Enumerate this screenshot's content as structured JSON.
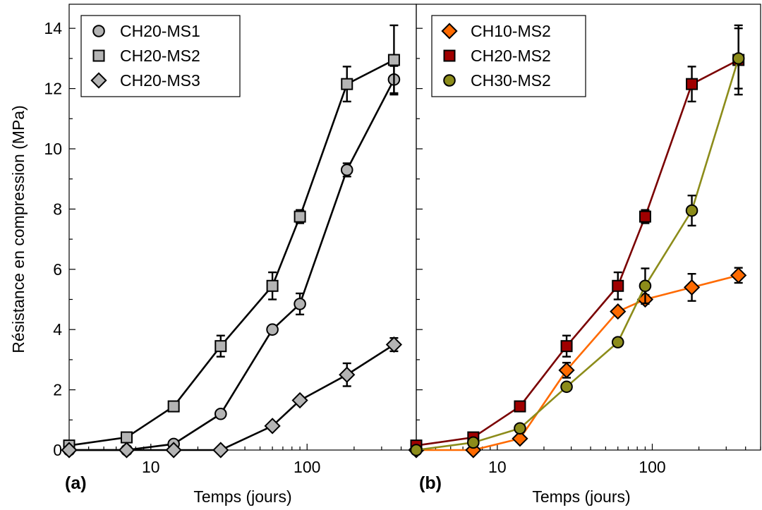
{
  "ylabel": "Résistance en compression (MPa)",
  "chart_data": [
    {
      "type": "line",
      "panel_label": "(a)",
      "xlabel": "Temps (jours)",
      "x_scale": "log",
      "xlim": [
        3,
        500
      ],
      "ylim": [
        0,
        14.8
      ],
      "x_tick_labels": [
        "10",
        "100"
      ],
      "y_tick_labels": [
        "0",
        "2",
        "4",
        "6",
        "8",
        "10",
        "12",
        "14"
      ],
      "legend_position": "top-left",
      "series": [
        {
          "name": "CH20-MS1",
          "marker": "circle",
          "color": "#000000",
          "fill": "#b4b4b4",
          "points": [
            {
              "x": 3,
              "y": 0.0,
              "err": 0.05
            },
            {
              "x": 7,
              "y": 0.0,
              "err": 0.05
            },
            {
              "x": 14,
              "y": 0.2,
              "err": 0.08
            },
            {
              "x": 28,
              "y": 1.2,
              "err": 0.08
            },
            {
              "x": 60,
              "y": 4.0,
              "err": 0.1
            },
            {
              "x": 90,
              "y": 4.85,
              "err": 0.35
            },
            {
              "x": 180,
              "y": 9.3,
              "err": 0.22
            },
            {
              "x": 360,
              "y": 12.3,
              "err": 0.45
            }
          ]
        },
        {
          "name": "CH20-MS2",
          "marker": "square",
          "color": "#000000",
          "fill": "#b4b4b4",
          "points": [
            {
              "x": 3,
              "y": 0.15,
              "err": 0.05
            },
            {
              "x": 7,
              "y": 0.42,
              "err": 0.05
            },
            {
              "x": 14,
              "y": 1.45,
              "err": 0.08
            },
            {
              "x": 28,
              "y": 3.45,
              "err": 0.35
            },
            {
              "x": 60,
              "y": 5.45,
              "err": 0.45
            },
            {
              "x": 90,
              "y": 7.75,
              "err": 0.22
            },
            {
              "x": 180,
              "y": 12.15,
              "err": 0.58
            },
            {
              "x": 360,
              "y": 12.95,
              "err": 1.15
            }
          ]
        },
        {
          "name": "CH20-MS3",
          "marker": "diamond",
          "color": "#000000",
          "fill": "#b4b4b4",
          "points": [
            {
              "x": 3,
              "y": 0.0,
              "err": 0.05
            },
            {
              "x": 7,
              "y": 0.0,
              "err": 0.05
            },
            {
              "x": 14,
              "y": 0.0,
              "err": 0.05
            },
            {
              "x": 28,
              "y": 0.0,
              "err": 0.05
            },
            {
              "x": 60,
              "y": 0.8,
              "err": 0.08
            },
            {
              "x": 90,
              "y": 1.65,
              "err": 0.1
            },
            {
              "x": 180,
              "y": 2.5,
              "err": 0.38
            },
            {
              "x": 360,
              "y": 3.5,
              "err": 0.22
            }
          ]
        }
      ]
    },
    {
      "type": "line",
      "panel_label": "(b)",
      "xlabel": "Temps (jours)",
      "x_scale": "log",
      "xlim": [
        3,
        500
      ],
      "ylim": [
        0,
        14.8
      ],
      "x_tick_labels": [
        "10",
        "100"
      ],
      "legend_position": "top-left",
      "series": [
        {
          "name": "CH10-MS2",
          "marker": "diamond",
          "color": "#ff6a00",
          "fill": "#ff6a00",
          "points": [
            {
              "x": 3,
              "y": 0.0,
              "err": 0.05
            },
            {
              "x": 7,
              "y": 0.0,
              "err": 0.05
            },
            {
              "x": 14,
              "y": 0.38,
              "err": 0.08
            },
            {
              "x": 28,
              "y": 2.65,
              "err": 0.25
            },
            {
              "x": 60,
              "y": 4.6,
              "err": 0.1
            },
            {
              "x": 90,
              "y": 5.0,
              "err": 0.15
            },
            {
              "x": 180,
              "y": 5.4,
              "err": 0.45
            },
            {
              "x": 360,
              "y": 5.8,
              "err": 0.25
            }
          ]
        },
        {
          "name": "CH20-MS2",
          "marker": "square",
          "color": "#7a0000",
          "fill": "#a00000",
          "points": [
            {
              "x": 3,
              "y": 0.15,
              "err": 0.05
            },
            {
              "x": 7,
              "y": 0.42,
              "err": 0.05
            },
            {
              "x": 14,
              "y": 1.45,
              "err": 0.08
            },
            {
              "x": 28,
              "y": 3.45,
              "err": 0.35
            },
            {
              "x": 60,
              "y": 5.45,
              "err": 0.45
            },
            {
              "x": 90,
              "y": 7.75,
              "err": 0.22
            },
            {
              "x": 180,
              "y": 12.15,
              "err": 0.58
            },
            {
              "x": 360,
              "y": 12.95,
              "err": 1.15
            }
          ]
        },
        {
          "name": "CH30-MS2",
          "marker": "circle",
          "color": "#8c8c1a",
          "fill": "#8c8c1a",
          "points": [
            {
              "x": 3,
              "y": 0.0,
              "err": 0.05
            },
            {
              "x": 7,
              "y": 0.25,
              "err": 0.05
            },
            {
              "x": 14,
              "y": 0.72,
              "err": 0.08
            },
            {
              "x": 28,
              "y": 2.1,
              "err": 0.1
            },
            {
              "x": 60,
              "y": 3.58,
              "err": 0.08
            },
            {
              "x": 90,
              "y": 5.45,
              "err": 0.58
            },
            {
              "x": 180,
              "y": 7.95,
              "err": 0.5
            },
            {
              "x": 360,
              "y": 13.0,
              "err": 1.0
            }
          ]
        }
      ]
    }
  ]
}
